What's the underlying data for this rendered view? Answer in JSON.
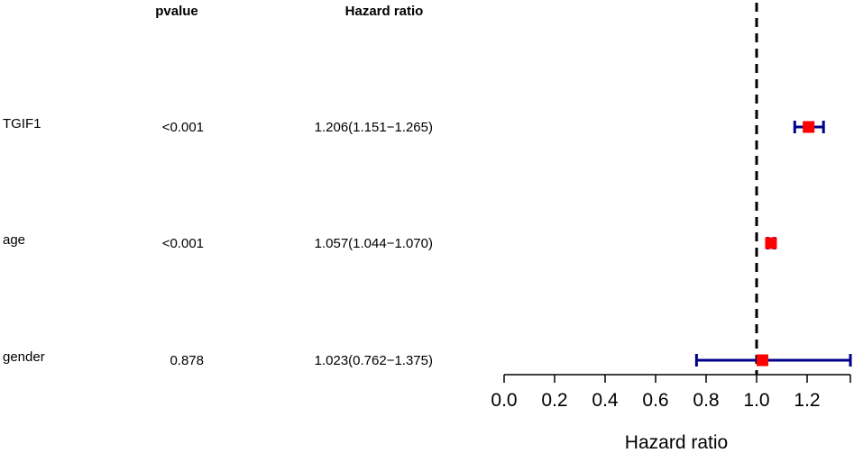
{
  "chart_data": {
    "type": "forest",
    "column_headers": {
      "pvalue": "pvalue",
      "hazard_ratio": "Hazard ratio"
    },
    "rows": [
      {
        "variable": "TGIF1",
        "pvalue": "<0.001",
        "hr_text": "1.206(1.151−1.265)",
        "hr": 1.206,
        "lower": 1.151,
        "upper": 1.265
      },
      {
        "variable": "age",
        "pvalue": "<0.001",
        "hr_text": "1.057(1.044−1.070)",
        "hr": 1.057,
        "lower": 1.044,
        "upper": 1.07
      },
      {
        "variable": "gender",
        "pvalue": "0.878",
        "hr_text": "1.023(0.762−1.375)",
        "hr": 1.023,
        "lower": 0.762,
        "upper": 1.375
      }
    ],
    "xlabel": "Hazard ratio",
    "xlim": [
      0,
      1.2
    ],
    "xticks": [
      "0.0",
      "0.2",
      "0.4",
      "0.6",
      "0.8",
      "1.0",
      "1.2"
    ],
    "reference_line": 1.0,
    "colors": {
      "point": "#ff0000",
      "ci": "#00008b",
      "axis": "#000000"
    }
  }
}
